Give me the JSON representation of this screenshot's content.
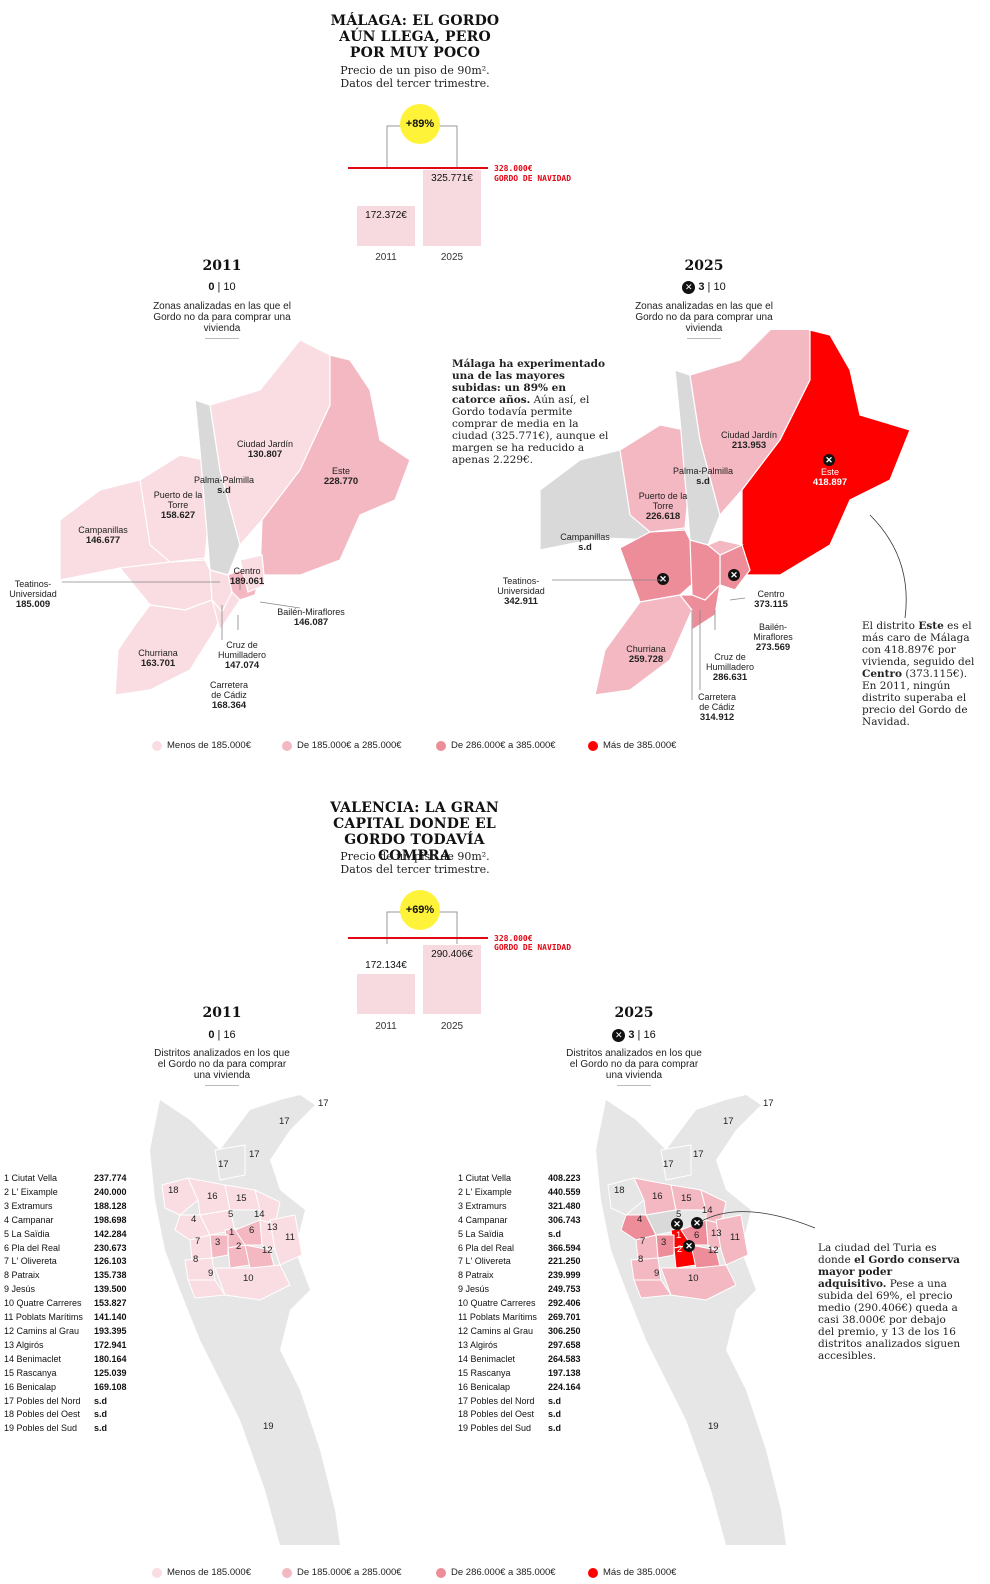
{
  "colors": {
    "c1": "#f9dde2",
    "c2": "#f3b8c1",
    "c3": "#ec8d99",
    "c4": "#ff0000",
    "nd": "#d9d9d9",
    "accent": "#e30613",
    "badge": "#fff33a"
  },
  "malaga": {
    "title": "MÁLAGA: EL GORDO AÚN LLEGA, PERO POR MUY POCO",
    "subtitle": "Precio de un piso de 90m². Datos del tercer trimestre.",
    "badge": "+89%",
    "bar_2011_value": "172.372€",
    "bar_2025_value": "325.771€",
    "bar_2011_year": "2011",
    "bar_2025_year": "2025",
    "gordo_value": "328.000€",
    "gordo_label": "GORDO DE NAVIDAD",
    "map2011": {
      "year": "2011",
      "count": "0",
      "total": "10",
      "desc": "Zonas analizadas en las que el Gordo no da para comprar una vivienda"
    },
    "map2025": {
      "year": "2025",
      "count": "3",
      "total": "10",
      "desc": "Zonas analizadas en las que el Gordo no da para comprar una vivienda"
    },
    "lead_bold": "Málaga ha experimentado una de las mayores subidas: un 89% en catorce años.",
    "lead_rest": "Aún así, el Gordo todavía permite comprar de media en la ciudad (325.771€), aunque el margen se ha reducido a apenas 2.229€.",
    "districts2011": [
      {
        "name": "Ciudad Jardín",
        "value": "130.807"
      },
      {
        "name": "Este",
        "value": "228.770"
      },
      {
        "name": "Palma-Palmilla",
        "value": "s.d"
      },
      {
        "name": "Puerto de la Torre",
        "value": "158.627"
      },
      {
        "name": "Campanillas",
        "value": "146.677"
      },
      {
        "name": "Teatinos-Universidad",
        "value": "185.009"
      },
      {
        "name": "Centro",
        "value": "189.061"
      },
      {
        "name": "Bailén-Miraflores",
        "value": "146.087"
      },
      {
        "name": "Cruz de Humilladero",
        "value": "147.074"
      },
      {
        "name": "Churriana",
        "value": "163.701"
      },
      {
        "name": "Carretera de Cádiz",
        "value": "168.364"
      }
    ],
    "districts2025": [
      {
        "name": "Ciudad Jardín",
        "value": "213.953"
      },
      {
        "name": "Este",
        "value": "418.897"
      },
      {
        "name": "Palma-Palmilla",
        "value": "s.d"
      },
      {
        "name": "Puerto de la Torre",
        "value": "226.618"
      },
      {
        "name": "Campanillas",
        "value": "s.d"
      },
      {
        "name": "Teatinos-Universidad",
        "value": "342.911"
      },
      {
        "name": "Centro",
        "value": "373.115"
      },
      {
        "name": "Bailén-Miraflores",
        "value": "273.569"
      },
      {
        "name": "Cruz de Humilladero",
        "value": "286.631"
      },
      {
        "name": "Churriana",
        "value": "259.728"
      },
      {
        "name": "Carretera de Cádiz",
        "value": "314.912"
      }
    ],
    "note_a": "El distrito ",
    "note_b": "Este",
    "note_c": " es el más caro de Málaga con 418.897€ por vivienda, seguido del ",
    "note_d": "Centro",
    "note_e": " (373.115€). En 2011, ningún distrito superaba el precio del Gordo de Navidad."
  },
  "legend": [
    "Menos de 185.000€",
    "De 185.000€ a 285.000€",
    "De 286.000€ a 385.000€",
    "Más de 385.000€"
  ],
  "valencia": {
    "title": "VALENCIA: LA GRAN CAPITAL DONDE EL GORDO TODAVÍA COMPRA",
    "subtitle": "Precio de un piso de 90m². Datos del tercer trimestre.",
    "badge": "+69%",
    "bar_2011_value": "172.134€",
    "bar_2025_value": "290.406€",
    "bar_2011_year": "2011",
    "bar_2025_year": "2025",
    "gordo_value": "328.000€",
    "gordo_label": "GORDO DE NAVIDAD",
    "map2011": {
      "year": "2011",
      "count": "0",
      "total": "16",
      "desc": "Distritos analizados en los que el Gordo no da para comprar una vivienda"
    },
    "map2025": {
      "year": "2025",
      "count": "3",
      "total": "16",
      "desc": "Distritos analizados en los que el Gordo no da para comprar una vivienda"
    },
    "list2011": [
      [
        "1 Ciutat Vella",
        "237.774"
      ],
      [
        "2 L' Eixample",
        "240.000"
      ],
      [
        "3 Extramurs",
        "188.128"
      ],
      [
        "4 Campanar",
        "198.698"
      ],
      [
        "5 La Saïdia",
        "142.284"
      ],
      [
        "6 Pla del Real",
        "230.673"
      ],
      [
        "7 L' Olivereta",
        "126.103"
      ],
      [
        "8 Patraix",
        "135.738"
      ],
      [
        "9 Jesús",
        "139.500"
      ],
      [
        "10 Quatre Carreres",
        "153.827"
      ],
      [
        "11 Poblats Marítims",
        "141.140"
      ],
      [
        "12 Camins al Grau",
        "193.395"
      ],
      [
        "13 Algirós",
        "172.941"
      ],
      [
        "14 Benimaclet",
        "180.164"
      ],
      [
        "15 Rascanya",
        "125.039"
      ],
      [
        "16 Benicalap",
        "169.108"
      ],
      [
        "17 Pobles del Nord",
        "s.d"
      ],
      [
        "18 Pobles del Oest",
        "s.d"
      ],
      [
        "19 Pobles del Sud",
        "s.d"
      ]
    ],
    "list2025": [
      [
        "1 Ciutat Vella",
        "408.223"
      ],
      [
        "2 L' Eixample",
        "440.559"
      ],
      [
        "3 Extramurs",
        "321.480"
      ],
      [
        "4 Campanar",
        "306.743"
      ],
      [
        "5 La Saïdia",
        "s.d"
      ],
      [
        "6 Pla del Real",
        "366.594"
      ],
      [
        "7 L' Olivereta",
        "221.250"
      ],
      [
        "8 Patraix",
        "239.999"
      ],
      [
        "9 Jesús",
        "249.753"
      ],
      [
        "10 Quatre Carreres",
        "292.406"
      ],
      [
        "11 Poblats Marítims",
        "269.701"
      ],
      [
        "12 Camins al Grau",
        "306.250"
      ],
      [
        "13 Algirós",
        "297.658"
      ],
      [
        "14 Benimaclet",
        "264.583"
      ],
      [
        "15 Rascanya",
        "197.138"
      ],
      [
        "16 Benicalap",
        "224.164"
      ],
      [
        "17 Pobles del Nord",
        "s.d"
      ],
      [
        "18 Pobles del Oest",
        "s.d"
      ],
      [
        "19 Pobles del Sud",
        "s.d"
      ]
    ],
    "map_numbers": [
      "1",
      "2",
      "3",
      "4",
      "5",
      "6",
      "7",
      "8",
      "9",
      "10",
      "11",
      "12",
      "13",
      "14",
      "15",
      "16",
      "17",
      "18",
      "19"
    ],
    "note_a": "La ciudad del Turia es donde ",
    "note_b": "el Gordo conserva mayor poder adquisitivo.",
    "note_c": " Pese a una subida del 69%, el precio medio (290.406€) queda a casi 38.000€ por debajo del premio, y 13 de los 16 distritos analizados siguen accesibles."
  }
}
